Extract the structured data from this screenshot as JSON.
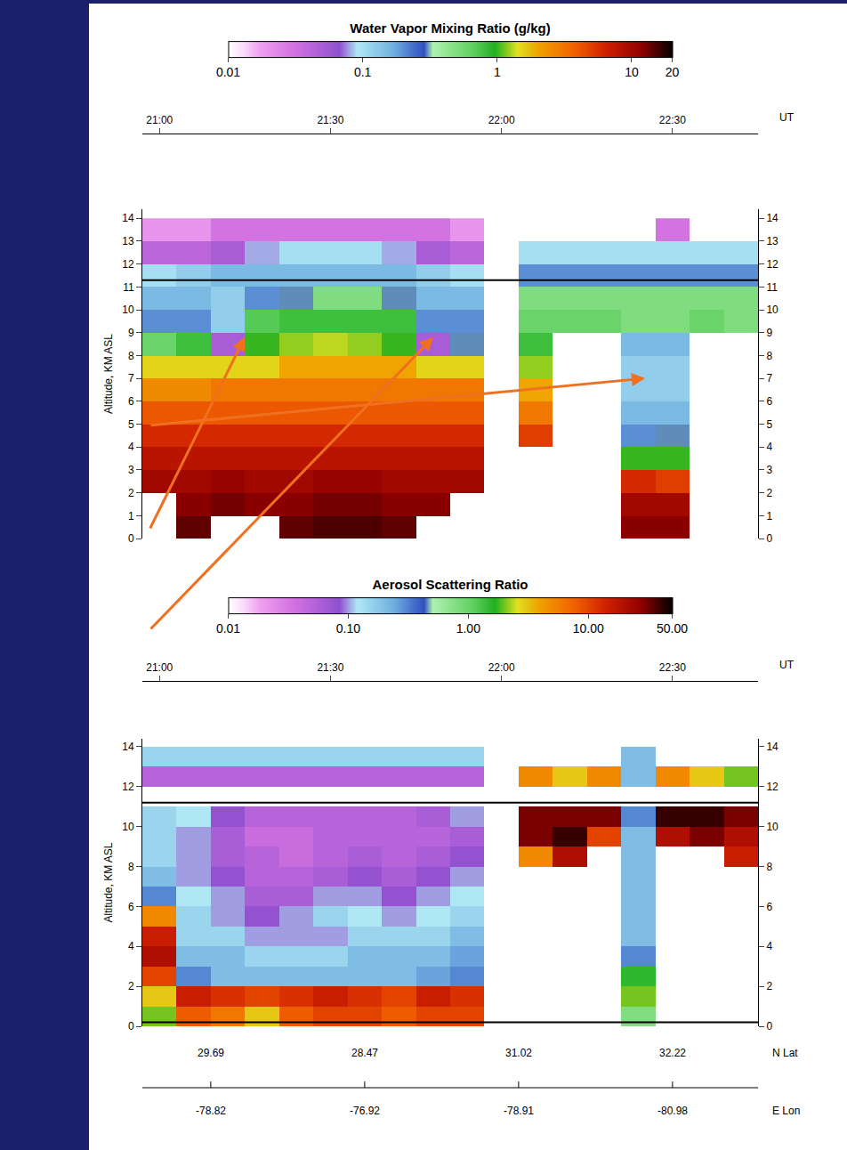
{
  "chart_data": [
    {
      "type": "heatmap",
      "title": "Water Vapor Mixing Ratio (g/kg)",
      "x_label": "UT",
      "y_label": "Altitude, KM ASL",
      "log": true,
      "x": [
        21.0,
        21.1,
        21.2,
        21.3,
        21.4,
        21.5,
        21.6,
        21.7,
        21.8,
        21.9,
        22.0,
        22.1,
        22.2,
        22.3,
        22.4,
        22.5,
        22.6,
        22.7
      ],
      "y": [
        0.5,
        1.5,
        2.5,
        3.5,
        4.5,
        5.5,
        6.5,
        7.5,
        8.5,
        9.5,
        10.5,
        11.5,
        12.5,
        13.5
      ],
      "cells": [
        [
          null,
          14,
          null,
          null,
          14,
          15,
          15,
          14,
          null,
          null,
          null,
          null,
          null,
          null,
          12,
          12,
          null,
          null
        ],
        [
          null,
          12,
          13,
          12,
          12,
          13,
          13,
          12,
          12,
          null,
          null,
          null,
          null,
          null,
          10,
          10,
          null,
          null
        ],
        [
          10,
          10,
          11,
          10,
          10,
          11,
          11,
          10,
          10,
          10,
          null,
          null,
          null,
          null,
          6,
          5,
          null,
          null
        ],
        [
          8,
          8,
          8,
          8,
          8,
          8,
          8,
          8,
          8,
          8,
          null,
          null,
          null,
          null,
          1,
          1,
          null,
          null
        ],
        [
          6,
          6,
          6,
          6,
          6,
          6,
          6,
          6,
          6,
          6,
          null,
          5,
          null,
          null,
          0.2,
          0.3,
          null,
          null
        ],
        [
          4,
          4,
          4,
          4,
          4,
          4,
          4,
          4,
          4,
          4,
          null,
          3,
          null,
          null,
          0.15,
          0.15,
          null,
          null
        ],
        [
          2.5,
          2.5,
          3,
          3,
          3,
          3,
          3,
          3,
          3,
          3,
          null,
          2,
          null,
          null,
          0.12,
          0.12,
          null,
          null
        ],
        [
          1.5,
          1.5,
          1.5,
          1.5,
          2,
          2,
          2,
          2,
          1.5,
          1.5,
          null,
          1.2,
          null,
          null,
          0.12,
          0.12,
          null,
          null
        ],
        [
          0.6,
          0.8,
          0.05,
          1,
          1.2,
          1.3,
          1.2,
          1,
          0.05,
          0.3,
          null,
          0.8,
          null,
          null,
          0.15,
          0.15,
          null,
          null
        ],
        [
          0.2,
          0.2,
          0.12,
          0.7,
          0.8,
          0.8,
          0.8,
          0.8,
          0.2,
          0.2,
          null,
          0.6,
          0.6,
          0.6,
          0.5,
          0.5,
          0.6,
          0.5
        ],
        [
          0.15,
          0.15,
          0.12,
          0.2,
          0.3,
          0.5,
          0.5,
          0.3,
          0.15,
          0.15,
          null,
          0.5,
          0.5,
          0.5,
          0.5,
          0.5,
          0.5,
          0.5
        ],
        [
          0.1,
          0.12,
          0.15,
          0.15,
          0.15,
          0.15,
          0.15,
          0.15,
          0.12,
          0.1,
          null,
          0.2,
          0.2,
          0.2,
          0.2,
          0.2,
          0.2,
          0.2
        ],
        [
          0.04,
          0.04,
          0.05,
          0.08,
          0.1,
          0.1,
          0.1,
          0.08,
          0.05,
          0.04,
          null,
          0.1,
          0.1,
          0.1,
          0.1,
          0.1,
          0.1,
          0.1
        ],
        [
          0.02,
          0.02,
          0.03,
          0.03,
          0.03,
          0.03,
          0.03,
          0.03,
          0.03,
          0.02,
          null,
          null,
          null,
          null,
          null,
          0.03,
          null,
          null
        ]
      ],
      "xlim": [
        20.95,
        22.75
      ],
      "xticks": [
        {
          "value": 21,
          "label": "21:00"
        },
        {
          "value": 21.5,
          "label": "21:30"
        },
        {
          "value": 22,
          "label": "22:00"
        },
        {
          "value": 22.5,
          "label": "22:30"
        }
      ],
      "ylim": [
        0,
        14.4
      ],
      "yticks": [
        0,
        1,
        2,
        3,
        4,
        5,
        6,
        7,
        8,
        9,
        10,
        11,
        12,
        13,
        14
      ],
      "colorbar_range": [
        0.01,
        20
      ],
      "colorbar_ticks": [
        0.01,
        0.1,
        1,
        10,
        20
      ],
      "reference_lines": [
        11.3
      ]
    },
    {
      "type": "heatmap",
      "title": "Aerosol Scattering Ratio",
      "x_label": "UT",
      "y_label": "Altitude, KM ASL",
      "log": true,
      "x": [
        21.0,
        21.1,
        21.2,
        21.3,
        21.4,
        21.5,
        21.6,
        21.7,
        21.8,
        21.9,
        22.0,
        22.1,
        22.2,
        22.3,
        22.4,
        22.5,
        22.6,
        22.7
      ],
      "y": [
        0.5,
        1.5,
        2.5,
        3.5,
        4.5,
        5.5,
        6.5,
        7.5,
        8.5,
        9.5,
        10.5,
        11.5,
        12.5,
        13.5
      ],
      "cells": [
        [
          2,
          8,
          6,
          3,
          8,
          10,
          10,
          8,
          10,
          10,
          null,
          null,
          null,
          null,
          0.8,
          null,
          null,
          null
        ],
        [
          3,
          15,
          12,
          10,
          12,
          15,
          12,
          10,
          15,
          12,
          null,
          null,
          null,
          null,
          2,
          null,
          null,
          null
        ],
        [
          10,
          0.3,
          0.2,
          0.2,
          0.2,
          0.2,
          0.2,
          0.2,
          0.25,
          0.3,
          null,
          null,
          null,
          null,
          1.5,
          null,
          null,
          null
        ],
        [
          20,
          0.2,
          0.2,
          0.15,
          0.15,
          0.15,
          0.2,
          0.2,
          0.2,
          0.25,
          null,
          null,
          null,
          null,
          0.3,
          null,
          null,
          null
        ],
        [
          15,
          0.15,
          0.15,
          0.1,
          0.1,
          0.1,
          0.15,
          0.15,
          0.15,
          0.2,
          null,
          null,
          null,
          null,
          0.2,
          null,
          null,
          null
        ],
        [
          5,
          0.15,
          0.1,
          0.08,
          0.1,
          0.15,
          0.12,
          0.1,
          0.12,
          0.15,
          null,
          null,
          null,
          null,
          0.2,
          null,
          null,
          null
        ],
        [
          0.3,
          0.12,
          0.1,
          0.06,
          0.06,
          0.1,
          0.1,
          0.08,
          0.1,
          0.12,
          null,
          null,
          null,
          null,
          0.2,
          null,
          null,
          null
        ],
        [
          0.2,
          0.1,
          0.08,
          0.05,
          0.05,
          0.06,
          0.08,
          0.06,
          0.08,
          0.1,
          null,
          null,
          null,
          null,
          0.2,
          null,
          null,
          null
        ],
        [
          0.15,
          0.1,
          0.06,
          0.05,
          0.04,
          0.05,
          0.06,
          0.05,
          0.06,
          0.08,
          null,
          5,
          20,
          null,
          0.2,
          null,
          null,
          15
        ],
        [
          0.15,
          0.1,
          0.06,
          0.04,
          0.04,
          0.05,
          0.05,
          0.05,
          0.05,
          0.06,
          null,
          30,
          40,
          10,
          0.2,
          20,
          30,
          20
        ],
        [
          0.15,
          0.12,
          0.08,
          0.05,
          0.05,
          0.05,
          0.05,
          0.05,
          0.06,
          0.1,
          null,
          30,
          30,
          30,
          0.3,
          40,
          40,
          30
        ],
        [
          null,
          null,
          null,
          null,
          null,
          null,
          null,
          null,
          null,
          null,
          null,
          null,
          null,
          null,
          null,
          null,
          null,
          null
        ],
        [
          0.05,
          0.05,
          0.05,
          0.05,
          0.05,
          0.05,
          0.05,
          0.05,
          0.05,
          0.05,
          null,
          5,
          3,
          5,
          0.2,
          5,
          3,
          2
        ],
        [
          0.15,
          0.15,
          0.15,
          0.15,
          0.15,
          0.15,
          0.15,
          0.15,
          0.15,
          0.15,
          null,
          null,
          null,
          null,
          0.2,
          null,
          null,
          null
        ]
      ],
      "xlim": [
        20.95,
        22.75
      ],
      "xticks": [
        {
          "value": 21,
          "label": "21:00"
        },
        {
          "value": 21.5,
          "label": "21:30"
        },
        {
          "value": 22,
          "label": "22:00"
        },
        {
          "value": 22.5,
          "label": "22:30"
        }
      ],
      "ylim": [
        0,
        14.4
      ],
      "yticks": [
        0,
        2,
        4,
        6,
        8,
        10,
        12,
        14
      ],
      "colorbar_range": [
        0.01,
        50
      ],
      "colorbar_ticks": [
        {
          "value": 0.01,
          "label": "0.01"
        },
        {
          "value": 0.1,
          "label": "0.10"
        },
        {
          "value": 1,
          "label": "1.00"
        },
        {
          "value": 10,
          "label": "10.00"
        },
        {
          "value": 50,
          "label": "50.00"
        }
      ],
      "reference_lines": [
        11.2,
        0.2
      ],
      "lat_label": "N Lat",
      "lat_ticks": [
        {
          "value": 21.15,
          "label": "29.69"
        },
        {
          "value": 21.6,
          "label": "28.47"
        },
        {
          "value": 22.05,
          "label": "31.02"
        },
        {
          "value": 22.5,
          "label": "32.22"
        }
      ],
      "lon_label": "E Lon",
      "lon_ticks": [
        {
          "value": 21.15,
          "label": "-78.82"
        },
        {
          "value": 21.6,
          "label": "-76.92"
        },
        {
          "value": 22.05,
          "label": "-78.91"
        },
        {
          "value": 22.5,
          "label": "-80.98"
        }
      ]
    }
  ]
}
